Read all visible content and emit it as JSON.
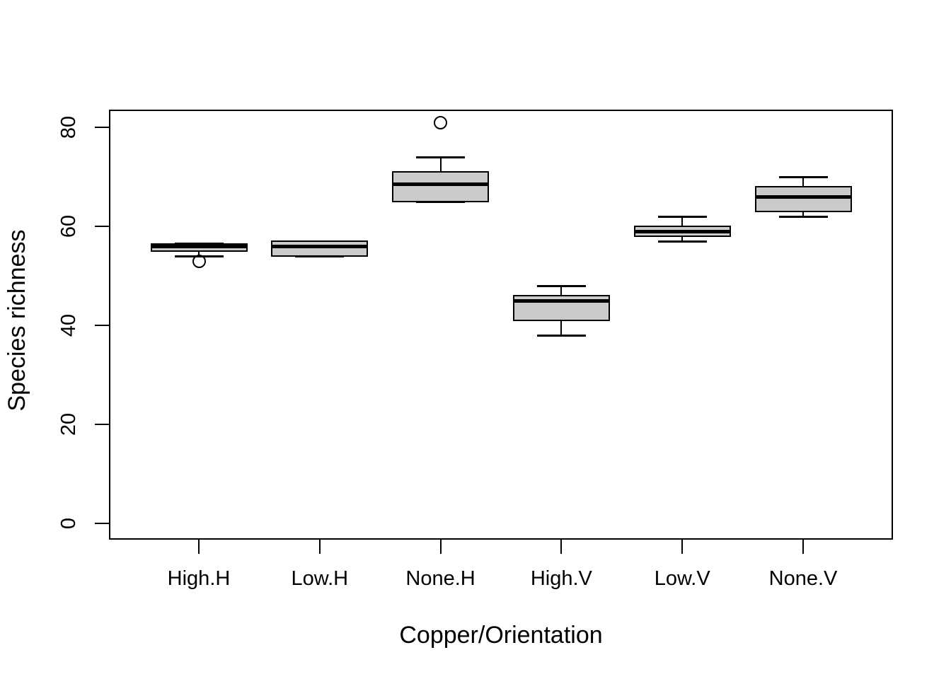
{
  "chart_data": {
    "type": "boxplot",
    "title": "",
    "xlabel": "Copper/Orientation",
    "ylabel": "Species richness",
    "y_ticks": [
      0,
      20,
      40,
      60,
      80
    ],
    "y_tick_labels": [
      "0",
      "20",
      "40",
      "60",
      "80"
    ],
    "ylim": [
      0,
      81
    ],
    "grid": false,
    "legend": false,
    "categories": [
      "High.H",
      "Low.H",
      "None.H",
      "High.V",
      "Low.V",
      "None.V"
    ],
    "boxes": [
      {
        "category": "High.H",
        "whisker_low": 54,
        "q1": 55,
        "median": 56,
        "q3": 56.5,
        "whisker_high": 56.5,
        "outliers": [
          53
        ]
      },
      {
        "category": "Low.H",
        "whisker_low": 54,
        "q1": 54,
        "median": 56,
        "q3": 57,
        "whisker_high": 57,
        "outliers": []
      },
      {
        "category": "None.H",
        "whisker_low": 65,
        "q1": 65,
        "median": 68.5,
        "q3": 71,
        "whisker_high": 74,
        "outliers": [
          81
        ]
      },
      {
        "category": "High.V",
        "whisker_low": 38,
        "q1": 41,
        "median": 45,
        "q3": 46,
        "whisker_high": 48,
        "outliers": []
      },
      {
        "category": "Low.V",
        "whisker_low": 57,
        "q1": 58,
        "median": 59,
        "q3": 60,
        "whisker_high": 62,
        "outliers": []
      },
      {
        "category": "None.V",
        "whisker_low": 62,
        "q1": 63,
        "median": 66,
        "q3": 68,
        "whisker_high": 70,
        "outliers": []
      }
    ],
    "colors": {
      "box_fill": "#CBCBCB",
      "line": "#000000",
      "background": "#FFFFFF"
    }
  }
}
